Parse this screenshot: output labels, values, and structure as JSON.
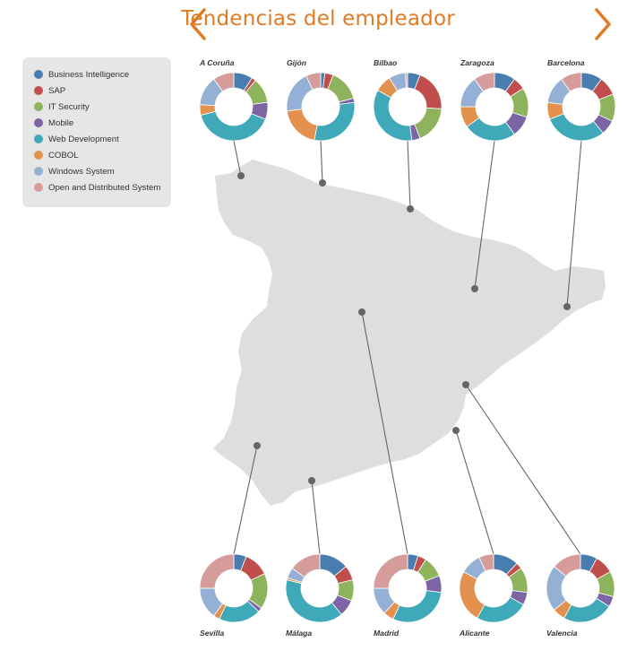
{
  "header": {
    "title": "Tendencias del empleador",
    "prev_icon": "chevron-left-icon",
    "next_icon": "chevron-right-icon",
    "accent_color": "#E07B24"
  },
  "legend": {
    "items": [
      {
        "label": "Business Intelligence",
        "color": "#4A7DAF"
      },
      {
        "label": "SAP",
        "color": "#BF4E4C"
      },
      {
        "label": "IT Security",
        "color": "#8DB35D"
      },
      {
        "label": "Mobile",
        "color": "#7D64A4"
      },
      {
        "label": "Web Development",
        "color": "#3FA8B9"
      },
      {
        "label": "COBOL",
        "color": "#E2924E"
      },
      {
        "label": "Windows System",
        "color": "#94B0D4"
      },
      {
        "label": "Open and Distributed System",
        "color": "#D69C9C"
      }
    ]
  },
  "chart_data": {
    "type": "donut",
    "unit": "share",
    "series": [
      "Business Intelligence",
      "SAP",
      "IT Security",
      "Mobile",
      "Web Development",
      "COBOL",
      "Windows System",
      "Open and Distributed System"
    ],
    "cities": [
      {
        "name": "A Coruña",
        "values": [
          9,
          2,
          12,
          8,
          40,
          5,
          14,
          10
        ]
      },
      {
        "name": "Gijón",
        "values": [
          2,
          4,
          15,
          2,
          30,
          20,
          20,
          7
        ]
      },
      {
        "name": "Bilbao",
        "values": [
          6,
          20,
          18,
          4,
          35,
          8,
          8,
          1
        ]
      },
      {
        "name": "Zaragoza",
        "values": [
          10,
          6,
          14,
          10,
          25,
          10,
          15,
          10
        ]
      },
      {
        "name": "Barcelona",
        "values": [
          10,
          9,
          13,
          7,
          30,
          8,
          13,
          10
        ]
      },
      {
        "name": "Sevilla",
        "values": [
          6,
          12,
          17,
          2,
          20,
          3,
          15,
          25
        ]
      },
      {
        "name": "Málaga",
        "values": [
          14,
          7,
          10,
          8,
          40,
          1,
          5,
          15
        ]
      },
      {
        "name": "Madrid",
        "values": [
          5,
          4,
          10,
          8,
          30,
          5,
          13,
          25
        ]
      },
      {
        "name": "Alicante",
        "values": [
          12,
          3,
          12,
          6,
          25,
          25,
          10,
          7
        ]
      },
      {
        "name": "Valencia",
        "values": [
          8,
          9,
          12,
          5,
          24,
          6,
          22,
          14
        ]
      }
    ]
  }
}
